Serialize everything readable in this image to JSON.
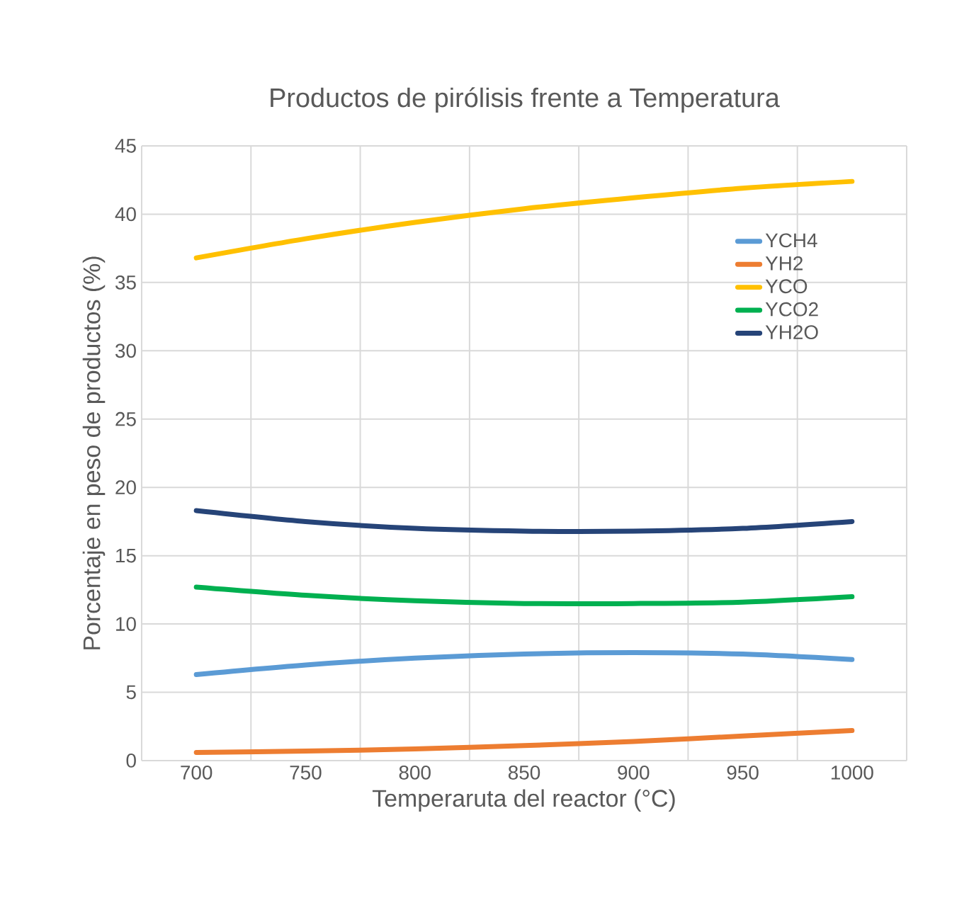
{
  "chart_data": {
    "type": "line",
    "title": "Productos de pirólisis frente a Temperatura",
    "xlabel": "Temperaruta del reactor (°C)",
    "ylabel": "Porcentaje en peso de productos (%)",
    "categories": [
      "700",
      "750",
      "800",
      "850",
      "900",
      "950",
      "1000"
    ],
    "series": [
      {
        "name": "YCH4",
        "color": "#5b9bd5",
        "values": [
          6.3,
          7.0,
          7.5,
          7.8,
          7.9,
          7.8,
          7.4
        ]
      },
      {
        "name": "YH2",
        "color": "#ed7d31",
        "values": [
          0.6,
          0.7,
          0.85,
          1.1,
          1.4,
          1.8,
          2.2
        ]
      },
      {
        "name": "YCO",
        "color": "#ffc000",
        "values": [
          36.8,
          38.2,
          39.4,
          40.4,
          41.2,
          41.9,
          42.4
        ]
      },
      {
        "name": "YCO2",
        "color": "#00b050",
        "values": [
          12.7,
          12.1,
          11.7,
          11.5,
          11.5,
          11.6,
          12.0
        ]
      },
      {
        "name": "YH2O",
        "color": "#264478",
        "values": [
          18.3,
          17.5,
          17.0,
          16.8,
          16.8,
          17.0,
          17.5
        ]
      }
    ],
    "ylim": [
      0,
      45
    ],
    "yticks": [
      0,
      5,
      10,
      15,
      20,
      25,
      30,
      35,
      40,
      45
    ],
    "grid": true,
    "legend": "right",
    "marker": "none",
    "line_style": "solid"
  }
}
